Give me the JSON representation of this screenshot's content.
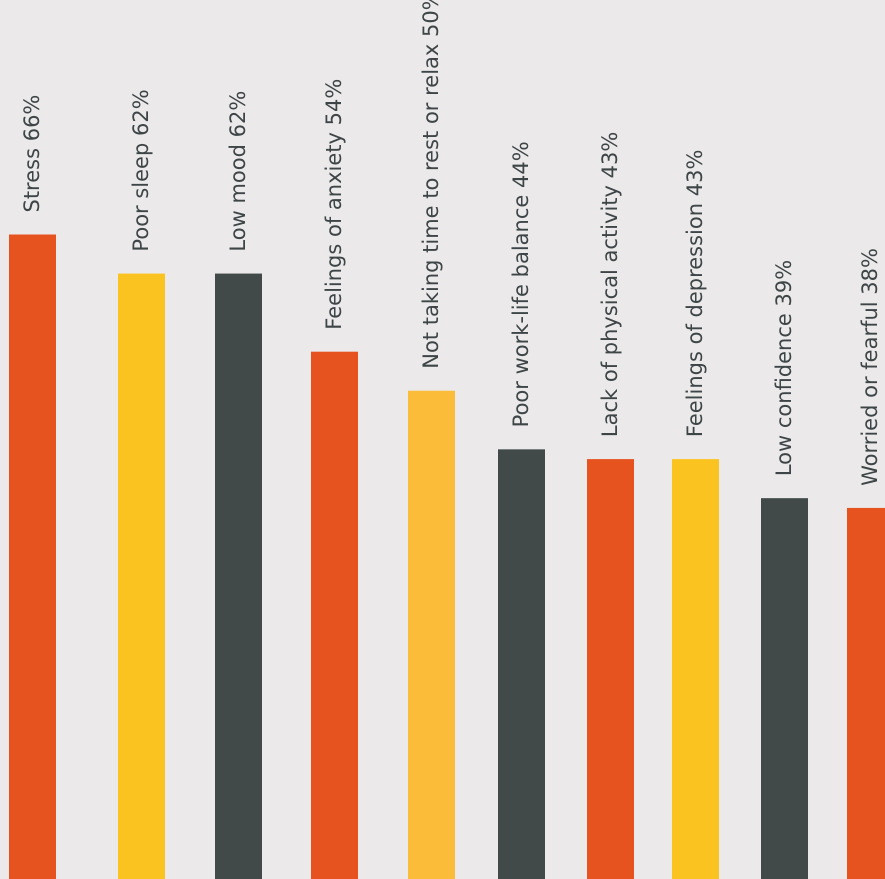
{
  "chart_data": {
    "type": "bar",
    "orientation": "vertical",
    "categories": [
      "Stress",
      "Poor sleep",
      "Low mood",
      "Feelings of anxiety",
      "Not taking time to rest or relax",
      "Poor work-life balance",
      "Lack of physical activity",
      "Feelings of depression",
      "Low confidence",
      "Worried or fearful"
    ],
    "values": [
      66,
      62,
      62,
      54,
      50,
      44,
      43,
      43,
      39,
      38
    ],
    "labels": [
      "Stress 66%",
      "Poor sleep 62%",
      "Low mood 62%",
      "Feelings of anxiety 54%",
      "Not taking time to rest or relax 50%",
      "Poor work-life balance 44%",
      "Lack of physical activity 43%",
      "Feelings of depression 43%",
      "Low confidence 39%",
      "Worried or fearful 38%"
    ],
    "bar_colors": [
      "#e6531f",
      "#fbc31f",
      "#414a49",
      "#e6531f",
      "#fbbd39",
      "#414a49",
      "#e6531f",
      "#fbc31f",
      "#414a49",
      "#e6531f"
    ],
    "title": "",
    "xlabel": "",
    "ylabel": "",
    "ylim": [
      0,
      100
    ],
    "grid": false,
    "legend": "none"
  },
  "colors": {
    "background": "#ebe9ea",
    "label_text": "#3d4547"
  }
}
